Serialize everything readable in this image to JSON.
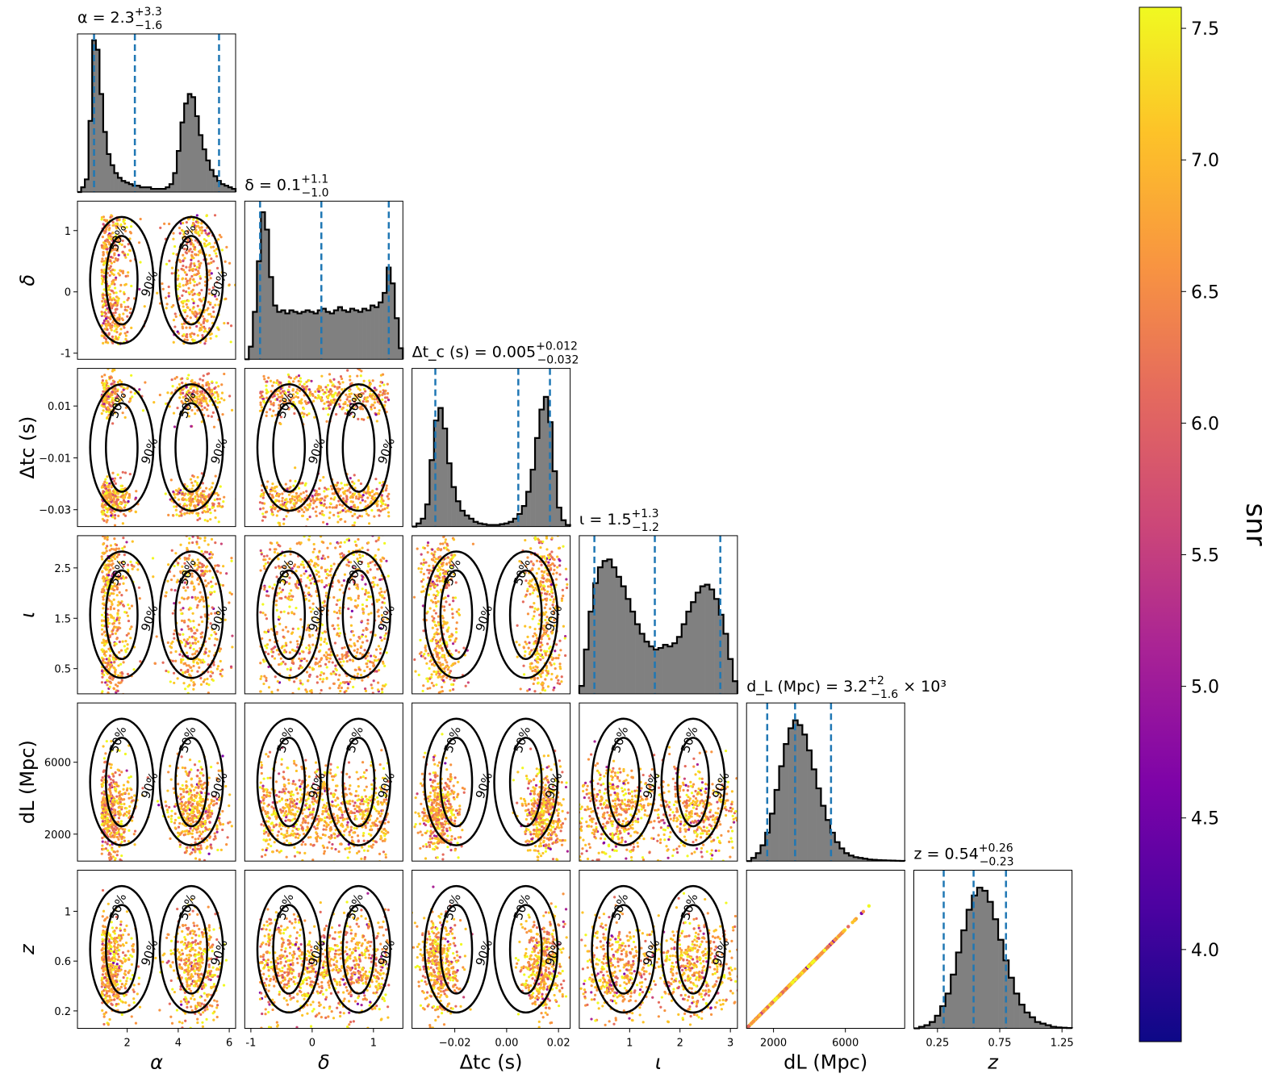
{
  "chart_data": {
    "type": "scatter",
    "subtype": "corner-plot",
    "parameters": [
      {
        "key": "alpha",
        "xlabel": "α",
        "ylabel": "",
        "title": "α = 2.3",
        "sup": "+3.3",
        "sub": "−1.6",
        "median": 2.3,
        "lo": 0.7,
        "hi": 5.6,
        "range": [
          0.05,
          6.25
        ],
        "ticks": [
          2,
          4,
          6
        ]
      },
      {
        "key": "delta",
        "xlabel": "δ",
        "ylabel": "δ",
        "title": "δ = 0.1",
        "sup": "+1.1",
        "sub": "−1.0",
        "median": 0.15,
        "lo": -0.85,
        "hi": 1.25,
        "range": [
          -1.1,
          1.48
        ],
        "ticks": [
          -1,
          0,
          1
        ]
      },
      {
        "key": "dtc",
        "xlabel": "Δt_c (s)",
        "ylabel": "Δt_c (s)",
        "title": "Δt_c (s) = 0.005",
        "sup": "+0.012",
        "sub": "−0.032",
        "median": 0.0045,
        "lo": -0.0275,
        "hi": 0.0167,
        "range": [
          -0.0365,
          0.0245
        ],
        "ticks": [
          -0.02,
          0.0,
          0.02
        ],
        "yticks": [
          -0.03,
          -0.01,
          0.01
        ],
        "tickLabels": [
          "−0.02",
          "0.00",
          "0.02"
        ],
        "ytickLabels": [
          "−0.03",
          "−0.01",
          "0.01"
        ]
      },
      {
        "key": "iota",
        "xlabel": "ι",
        "ylabel": "ι",
        "title": "ι = 1.5",
        "sup": "+1.3",
        "sub": "−1.2",
        "median": 1.5,
        "lo": 0.3,
        "hi": 2.8,
        "range": [
          0.0,
          3.14
        ],
        "ticks": [
          1,
          2,
          3
        ],
        "yticks": [
          0.5,
          1.5,
          2.5
        ]
      },
      {
        "key": "dl",
        "xlabel": "d_L (Mpc)",
        "ylabel": "d_L (Mpc)",
        "title": "d_L (Mpc) = 3.2",
        "sup": "+2",
        "sub": "−1.6",
        "suffix": " × 10³",
        "median": 3200,
        "lo": 1650,
        "hi": 5200,
        "range": [
          500,
          9300
        ],
        "ticks": [
          2000,
          6000
        ]
      },
      {
        "key": "z",
        "xlabel": "z",
        "ylabel": "z",
        "title": "z = 0.54",
        "sup": "+0.26",
        "sub": "−0.23",
        "median": 0.54,
        "lo": 0.3,
        "hi": 0.8,
        "range": [
          0.06,
          1.33
        ],
        "ticks": [
          0.25,
          0.75,
          1.25
        ],
        "yticks": [
          0.2,
          0.6,
          1.0
        ],
        "tickLabels": [
          "0.25",
          "0.75",
          "1.25"
        ]
      }
    ],
    "histograms": {
      "alpha": [
        0.0,
        0.03,
        0.08,
        0.45,
        0.96,
        0.9,
        0.62,
        0.38,
        0.24,
        0.17,
        0.12,
        0.09,
        0.07,
        0.06,
        0.05,
        0.04,
        0.04,
        0.03,
        0.03,
        0.03,
        0.02,
        0.02,
        0.02,
        0.02,
        0.03,
        0.05,
        0.12,
        0.26,
        0.44,
        0.56,
        0.62,
        0.6,
        0.48,
        0.36,
        0.27,
        0.2,
        0.14,
        0.1,
        0.07,
        0.05,
        0.04,
        0.03,
        0.02
      ],
      "delta": [
        0.0,
        0.08,
        0.3,
        0.62,
        0.93,
        0.82,
        0.52,
        0.34,
        0.3,
        0.31,
        0.29,
        0.31,
        0.3,
        0.29,
        0.3,
        0.31,
        0.3,
        0.29,
        0.31,
        0.32,
        0.3,
        0.29,
        0.31,
        0.33,
        0.31,
        0.3,
        0.32,
        0.31,
        0.3,
        0.32,
        0.31,
        0.34,
        0.33,
        0.36,
        0.42,
        0.58,
        0.48,
        0.26,
        0.07
      ],
      "dtc": [
        0.0,
        0.02,
        0.05,
        0.14,
        0.42,
        0.67,
        0.75,
        0.62,
        0.4,
        0.25,
        0.16,
        0.1,
        0.07,
        0.05,
        0.03,
        0.02,
        0.015,
        0.01,
        0.01,
        0.01,
        0.015,
        0.02,
        0.03,
        0.05,
        0.08,
        0.13,
        0.22,
        0.36,
        0.56,
        0.74,
        0.82,
        0.66,
        0.35,
        0.12,
        0.04,
        0.01
      ],
      "iota": [
        0.05,
        0.28,
        0.52,
        0.7,
        0.8,
        0.84,
        0.85,
        0.8,
        0.74,
        0.68,
        0.6,
        0.52,
        0.44,
        0.38,
        0.33,
        0.3,
        0.28,
        0.29,
        0.31,
        0.3,
        0.32,
        0.36,
        0.44,
        0.52,
        0.58,
        0.64,
        0.68,
        0.69,
        0.66,
        0.6,
        0.5,
        0.38,
        0.22,
        0.08
      ],
      "dl": [
        0.0,
        0.02,
        0.05,
        0.1,
        0.18,
        0.3,
        0.45,
        0.6,
        0.74,
        0.84,
        0.89,
        0.86,
        0.8,
        0.7,
        0.58,
        0.46,
        0.35,
        0.26,
        0.18,
        0.12,
        0.08,
        0.05,
        0.035,
        0.025,
        0.02,
        0.015,
        0.01,
        0.008,
        0.006,
        0.005,
        0.004,
        0.003,
        0.002,
        0.001
      ],
      "z": [
        0.0,
        0.01,
        0.02,
        0.04,
        0.08,
        0.14,
        0.22,
        0.34,
        0.48,
        0.62,
        0.75,
        0.84,
        0.89,
        0.87,
        0.8,
        0.69,
        0.56,
        0.43,
        0.32,
        0.22,
        0.15,
        0.1,
        0.07,
        0.04,
        0.03,
        0.02,
        0.01,
        0.006,
        0.004,
        0.002
      ]
    },
    "contour_labels": [
      "50%",
      "90%"
    ],
    "colorbar": {
      "label": "snr",
      "min": 3.65,
      "max": 7.58,
      "ticks": [
        4.0,
        4.5,
        5.0,
        5.5,
        6.0,
        6.5,
        7.0,
        7.5
      ],
      "tickLabels": [
        "4.0",
        "4.5",
        "5.0",
        "5.5",
        "6.0",
        "6.5",
        "7.0",
        "7.5"
      ],
      "colormap": "plasma"
    },
    "colors": {
      "hist_fill": "#808080",
      "hist_edge": "#000000",
      "quantile_line": "#1f77b4",
      "contour": "#000000"
    }
  }
}
